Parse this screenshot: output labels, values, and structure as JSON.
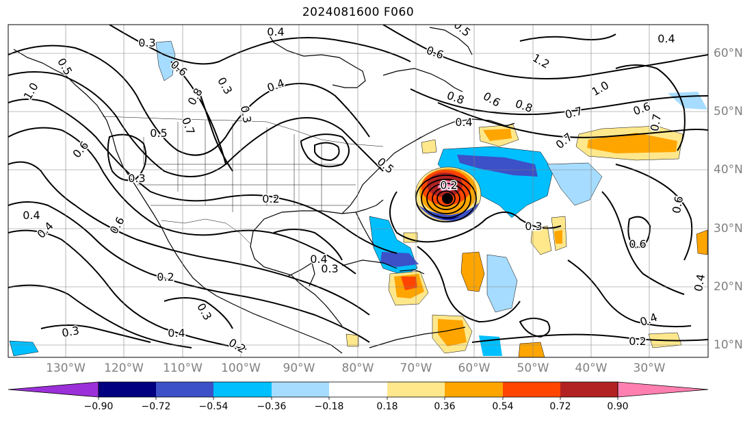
{
  "title": "2024081600 F060",
  "map": {
    "lon_labels": [
      "130°W",
      "120°W",
      "110°W",
      "100°W",
      "90°W",
      "80°W",
      "70°W",
      "60°W",
      "50°W",
      "40°W",
      "30°W"
    ],
    "lat_labels": [
      "60°N",
      "50°N",
      "40°N",
      "30°N",
      "20°N",
      "10°N"
    ],
    "contour_labels": [
      "0.3",
      "0.4",
      "0.5",
      "0.6",
      "0.7",
      "0.8",
      "1.0",
      "1.2",
      "0.2",
      "0.3",
      "0.4",
      "0.6",
      "0.7",
      "0.8",
      "1.0",
      "0.5",
      "0.3",
      "0.4",
      "0.6",
      "0.2",
      "0.3",
      "0.4",
      "0.3",
      "0.4",
      "0.2",
      "0.4",
      "0.3",
      "0.2",
      "0.6",
      "0.3",
      "0.4",
      "0.6",
      "0.2",
      "0.4",
      "0.3",
      "0.6",
      "0.7",
      "0.4",
      "0.6",
      "0.7",
      "0.5",
      "0.8",
      "0.5",
      "0.6",
      "0.4"
    ]
  },
  "colorbar": {
    "colors": [
      "#9b30d9",
      "#000080",
      "#3c50c8",
      "#00bfff",
      "#a6dcff",
      "#ffffff",
      "#ffe88c",
      "#ffa500",
      "#ff4500",
      "#b22222",
      "#ff80b0"
    ],
    "tick_labels": [
      "−0.90",
      "−0.72",
      "−0.54",
      "−0.36",
      "−0.18",
      "0.18",
      "0.36",
      "0.54",
      "0.72",
      "0.90"
    ]
  }
}
